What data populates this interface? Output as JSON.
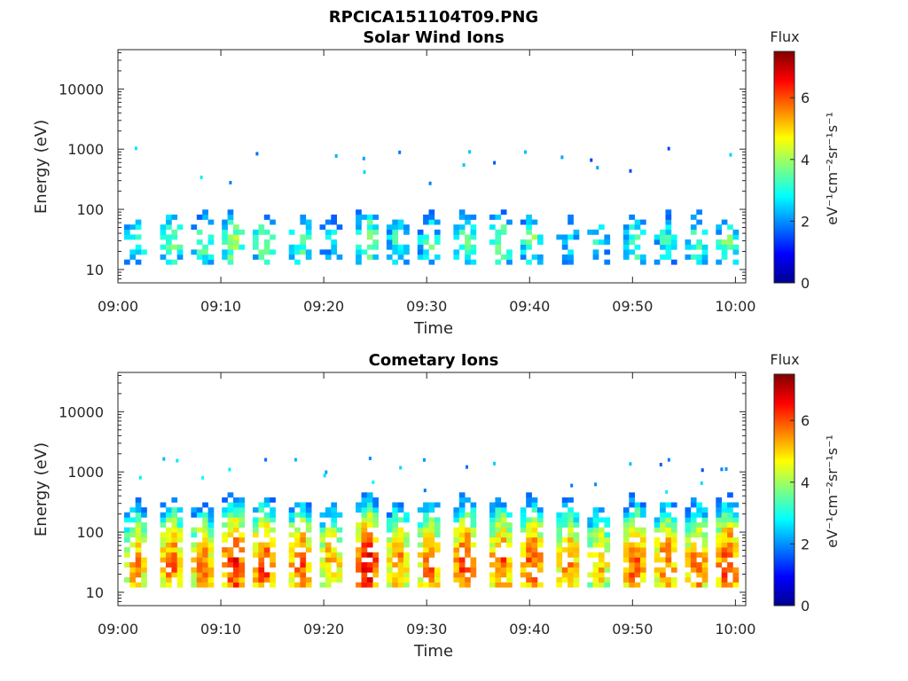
{
  "figure_title": "RPCICA151104T09.PNG",
  "colorbar": {
    "title": "Flux",
    "label": "eV⁻¹cm⁻²sr⁻¹s⁻¹",
    "ticks": [
      "0",
      "2",
      "4",
      "6"
    ],
    "range": [
      0,
      7.5
    ],
    "colormap": "jet"
  },
  "chart_data": [
    {
      "type": "heatmap",
      "title": "Solar Wind Ions",
      "xlabel": "Time",
      "ylabel": "Energy (eV)",
      "x_range": [
        "09:00",
        "10:01"
      ],
      "xticks": [
        "09:00",
        "09:10",
        "09:20",
        "09:30",
        "09:40",
        "09:50",
        "10:00"
      ],
      "y_scale": "log",
      "ylim": [
        6,
        45000
      ],
      "yticks": [
        "10",
        "100",
        "1000",
        "10000"
      ],
      "color_range": [
        0,
        7.5
      ],
      "bursts_minutes": [
        1.5,
        5,
        8,
        11,
        14,
        17.5,
        20.5,
        24,
        27,
        30,
        33.5,
        37,
        40,
        43.5,
        46.5,
        50,
        53,
        56,
        59
      ],
      "burst_peak_flux": [
        3.5,
        4.0,
        3.8,
        4.2,
        4.0,
        3.8,
        3.0,
        4.3,
        3.5,
        3.6,
        3.8,
        4.0,
        3.8,
        3.0,
        3.2,
        3.6,
        3.4,
        3.6,
        3.8
      ],
      "energy_band_eV": [
        12,
        400
      ],
      "peak_energy_eV": 30
    },
    {
      "type": "heatmap",
      "title": "Cometary Ions",
      "xlabel": "Time",
      "ylabel": "Energy (eV)",
      "x_range": [
        "09:00",
        "10:01"
      ],
      "xticks": [
        "09:00",
        "09:10",
        "09:20",
        "09:30",
        "09:40",
        "09:50",
        "10:00"
      ],
      "y_scale": "log",
      "ylim": [
        6,
        45000
      ],
      "yticks": [
        "10",
        "100",
        "1000",
        "10000"
      ],
      "color_range": [
        0,
        7.5
      ],
      "bursts_minutes": [
        1.5,
        5,
        8,
        11,
        14,
        17.5,
        20.5,
        24,
        27,
        30,
        33.5,
        37,
        40,
        43.5,
        46.5,
        50,
        53,
        56,
        59
      ],
      "burst_peak_flux": [
        5.6,
        6.0,
        5.8,
        6.6,
        6.4,
        6.2,
        5.6,
        6.8,
        5.8,
        6.0,
        6.4,
        6.2,
        6.2,
        5.8,
        5.4,
        6.2,
        6.0,
        6.0,
        6.4
      ],
      "energy_band_eV": [
        12,
        700
      ],
      "peak_energy_eV": 30
    }
  ]
}
